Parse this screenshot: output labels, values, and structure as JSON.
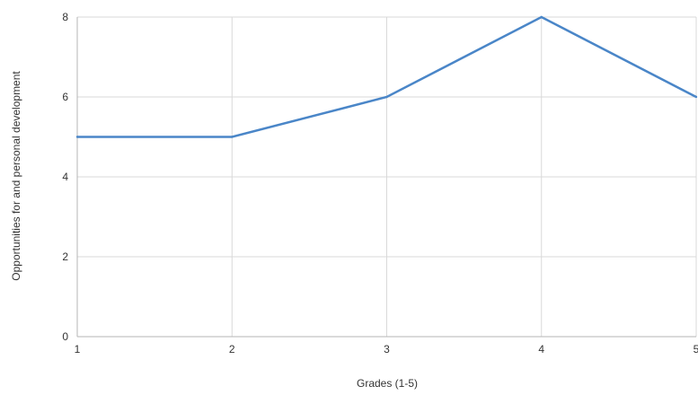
{
  "chart_data": {
    "type": "line",
    "title": "",
    "xlabel": "Grades (1-5)",
    "ylabel": "Opportunities for and personal development",
    "x": [
      1,
      2,
      3,
      4,
      5
    ],
    "series": [
      {
        "values": [
          5,
          5,
          6,
          8,
          6
        ]
      }
    ],
    "xlim": [
      1,
      5
    ],
    "ylim": [
      0,
      8
    ],
    "x_ticks": [
      1,
      2,
      3,
      4,
      5
    ],
    "y_ticks": [
      0,
      2,
      4,
      6,
      8
    ],
    "grid": true,
    "legend": "none",
    "colors": {
      "line": "#4a86c8",
      "grid": "#d9d9d9",
      "text": "#333333"
    }
  }
}
